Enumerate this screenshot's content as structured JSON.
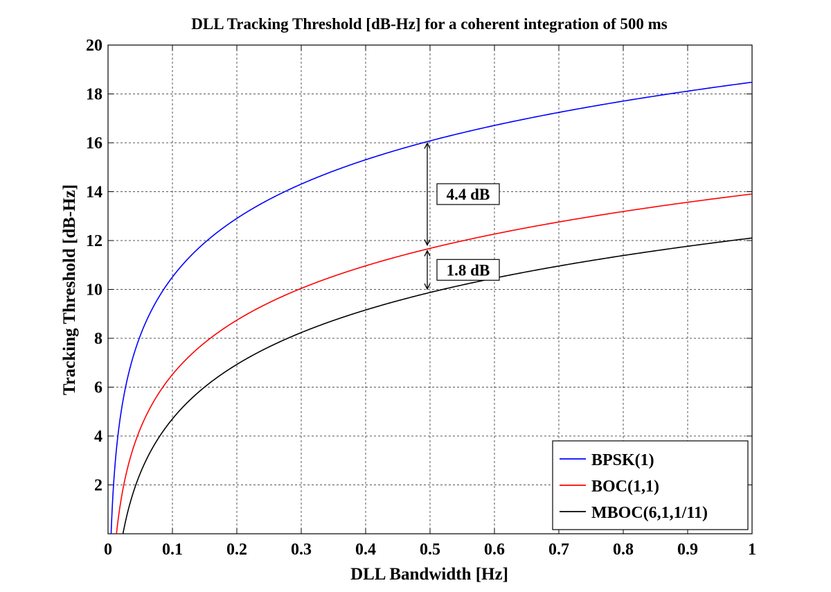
{
  "chart_data": {
    "type": "line",
    "title": "DLL Tracking Threshold [dB-Hz] for a coherent integration of 500 ms",
    "xlabel": "DLL Bandwidth [Hz]",
    "ylabel": "Tracking Threshold [dB-Hz]",
    "xlim": [
      0,
      1
    ],
    "ylim": [
      0,
      20
    ],
    "xticks": [
      "0",
      "0.1",
      "0.2",
      "0.3",
      "0.4",
      "0.5",
      "0.6",
      "0.7",
      "0.8",
      "0.9",
      "1"
    ],
    "yticks": [
      "2",
      "4",
      "6",
      "8",
      "10",
      "12",
      "14",
      "16",
      "18",
      "20"
    ],
    "grid": true,
    "legend_position": "bottom-right",
    "x": [
      0.01,
      0.02,
      0.04,
      0.05,
      0.1,
      0.2,
      0.3,
      0.4,
      0.5,
      0.6,
      0.7,
      0.8,
      0.9,
      1.0
    ],
    "series": [
      {
        "name": "BPSK(1)",
        "color": "#0000ff",
        "values": [
          1.0,
          4.5,
          7.4,
          8.4,
          10.1,
          12.7,
          14.3,
          15.4,
          16.1,
          16.8,
          17.3,
          17.8,
          18.1,
          18.4
        ]
      },
      {
        "name": "BOC(1,1)",
        "color": "#ff0000",
        "values": [
          null,
          0.6,
          3.6,
          4.5,
          6.3,
          8.6,
          10.0,
          11.0,
          11.7,
          12.3,
          12.8,
          13.2,
          13.6,
          13.9
        ]
      },
      {
        "name": "MBOC(6,1,1/11)",
        "color": "#000000",
        "values": [
          null,
          0.1,
          1.6,
          2.6,
          4.7,
          6.9,
          8.3,
          9.2,
          9.9,
          10.5,
          11.0,
          11.4,
          11.7,
          12.0
        ]
      }
    ],
    "annotations": [
      {
        "text": "4.4 dB",
        "x": 0.5,
        "y_from": 11.7,
        "y_to": 16.1
      },
      {
        "text": "1.8 dB",
        "x": 0.5,
        "y_from": 9.9,
        "y_to": 11.7
      }
    ]
  }
}
